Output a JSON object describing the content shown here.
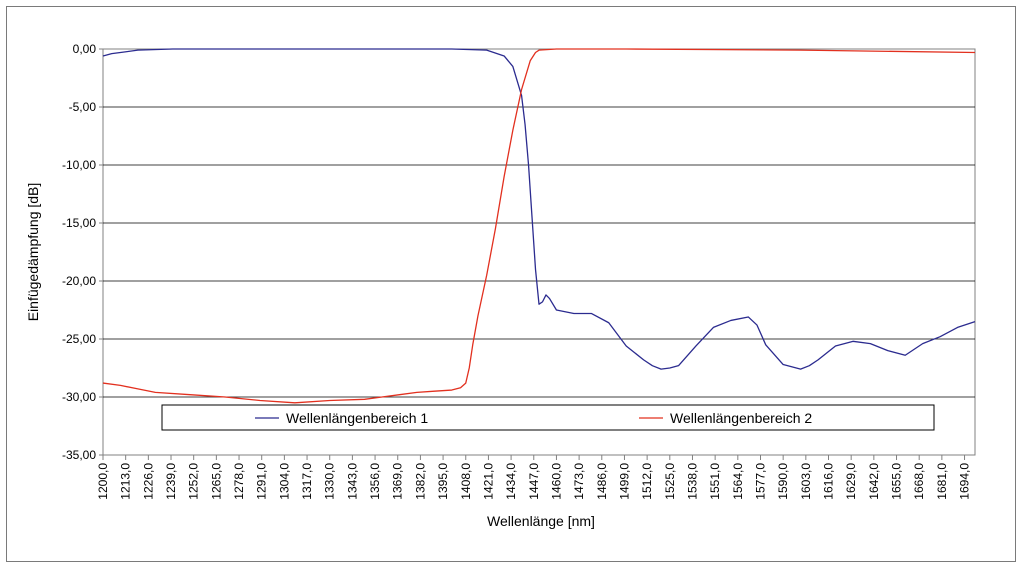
{
  "chart_data": {
    "type": "line",
    "title": "",
    "xlabel": "Wellenlänge [nm]",
    "ylabel": "Einfügedämpfung [dB]",
    "xlim": [
      1200,
      1700
    ],
    "ylim": [
      -35,
      0
    ],
    "grid": true,
    "legend_position": "lower-center",
    "x_ticks": [
      "1200,0",
      "1213,0",
      "1226,0",
      "1239,0",
      "1252,0",
      "1265,0",
      "1278,0",
      "1291,0",
      "1304,0",
      "1317,0",
      "1330,0",
      "1343,0",
      "1356,0",
      "1369,0",
      "1382,0",
      "1395,0",
      "1408,0",
      "1421,0",
      "1434,0",
      "1447,0",
      "1460,0",
      "1473,0",
      "1486,0",
      "1499,0",
      "1512,0",
      "1525,0",
      "1538,0",
      "1551,0",
      "1564,0",
      "1577,0",
      "1590,0",
      "1603,0",
      "1616,0",
      "1629,0",
      "1642,0",
      "1655,0",
      "1668,0",
      "1681,0",
      "1694,0"
    ],
    "y_ticks": [
      "0,00",
      "-5,00",
      "-10,00",
      "-15,00",
      "-20,00",
      "-25,00",
      "-30,00",
      "-35,00"
    ],
    "series": [
      {
        "name": "Wellenlängenbereich 1",
        "color": "#2b2b8f",
        "x": [
          1200,
          1205,
          1210,
          1220,
          1240,
          1300,
          1350,
          1400,
          1420,
          1430,
          1435,
          1440,
          1442,
          1444,
          1446,
          1448,
          1450,
          1452,
          1454,
          1456,
          1460,
          1470,
          1480,
          1490,
          1500,
          1510,
          1515,
          1520,
          1525,
          1530,
          1540,
          1550,
          1560,
          1570,
          1575,
          1580,
          1590,
          1600,
          1605,
          1610,
          1620,
          1630,
          1640,
          1650,
          1660,
          1670,
          1680,
          1690,
          1700
        ],
        "values": [
          -0.6,
          -0.4,
          -0.3,
          -0.1,
          0,
          0,
          0,
          0,
          -0.1,
          -0.6,
          -1.5,
          -4.0,
          -6.5,
          -10.0,
          -14.5,
          -19.0,
          -22.0,
          -21.8,
          -21.2,
          -21.5,
          -22.5,
          -22.8,
          -22.8,
          -23.6,
          -25.6,
          -26.8,
          -27.3,
          -27.6,
          -27.5,
          -27.3,
          -25.6,
          -24.0,
          -23.4,
          -23.1,
          -23.8,
          -25.5,
          -27.2,
          -27.6,
          -27.3,
          -26.8,
          -25.6,
          -25.2,
          -25.4,
          -26.0,
          -26.4,
          -25.4,
          -24.8,
          -24.0,
          -23.5
        ]
      },
      {
        "name": "Wellenlängenbereich 2",
        "color": "#e2301f",
        "x": [
          1200,
          1210,
          1220,
          1230,
          1250,
          1270,
          1290,
          1310,
          1330,
          1350,
          1370,
          1380,
          1390,
          1400,
          1405,
          1408,
          1410,
          1412,
          1415,
          1420,
          1425,
          1430,
          1435,
          1440,
          1445,
          1448,
          1450,
          1460,
          1500,
          1600,
          1700
        ],
        "values": [
          -28.8,
          -29.0,
          -29.3,
          -29.6,
          -29.8,
          -30.0,
          -30.3,
          -30.5,
          -30.3,
          -30.2,
          -29.8,
          -29.6,
          -29.5,
          -29.4,
          -29.2,
          -28.8,
          -27.5,
          -25.5,
          -23.0,
          -19.5,
          -15.5,
          -11.0,
          -7.0,
          -3.5,
          -1.0,
          -0.3,
          -0.1,
          0,
          0,
          -0.1,
          -0.3
        ]
      }
    ]
  }
}
